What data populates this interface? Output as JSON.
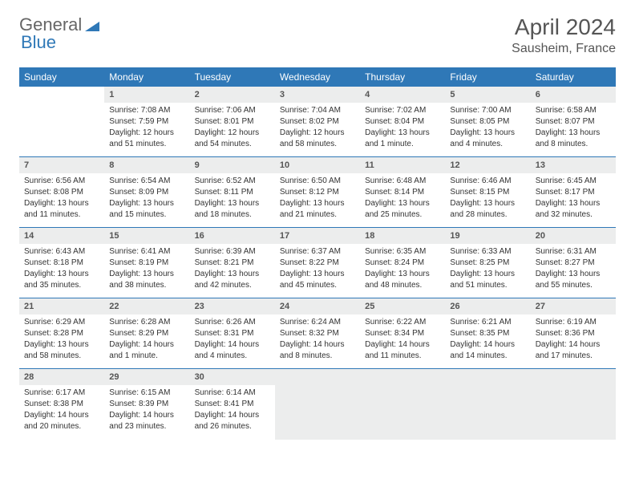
{
  "logo": {
    "part1": "General",
    "part2": "Blue"
  },
  "title": "April 2024",
  "location": "Sausheim, France",
  "colors": {
    "header_bg": "#2f78b7",
    "header_text": "#ffffff",
    "date_bar_bg": "#eceded",
    "border": "#2f78b7",
    "text": "#333333"
  },
  "weekdays": [
    "Sunday",
    "Monday",
    "Tuesday",
    "Wednesday",
    "Thursday",
    "Friday",
    "Saturday"
  ],
  "leading_blanks": 1,
  "days": [
    {
      "n": "1",
      "sunrise": "Sunrise: 7:08 AM",
      "sunset": "Sunset: 7:59 PM",
      "day1": "Daylight: 12 hours",
      "day2": "and 51 minutes."
    },
    {
      "n": "2",
      "sunrise": "Sunrise: 7:06 AM",
      "sunset": "Sunset: 8:01 PM",
      "day1": "Daylight: 12 hours",
      "day2": "and 54 minutes."
    },
    {
      "n": "3",
      "sunrise": "Sunrise: 7:04 AM",
      "sunset": "Sunset: 8:02 PM",
      "day1": "Daylight: 12 hours",
      "day2": "and 58 minutes."
    },
    {
      "n": "4",
      "sunrise": "Sunrise: 7:02 AM",
      "sunset": "Sunset: 8:04 PM",
      "day1": "Daylight: 13 hours",
      "day2": "and 1 minute."
    },
    {
      "n": "5",
      "sunrise": "Sunrise: 7:00 AM",
      "sunset": "Sunset: 8:05 PM",
      "day1": "Daylight: 13 hours",
      "day2": "and 4 minutes."
    },
    {
      "n": "6",
      "sunrise": "Sunrise: 6:58 AM",
      "sunset": "Sunset: 8:07 PM",
      "day1": "Daylight: 13 hours",
      "day2": "and 8 minutes."
    },
    {
      "n": "7",
      "sunrise": "Sunrise: 6:56 AM",
      "sunset": "Sunset: 8:08 PM",
      "day1": "Daylight: 13 hours",
      "day2": "and 11 minutes."
    },
    {
      "n": "8",
      "sunrise": "Sunrise: 6:54 AM",
      "sunset": "Sunset: 8:09 PM",
      "day1": "Daylight: 13 hours",
      "day2": "and 15 minutes."
    },
    {
      "n": "9",
      "sunrise": "Sunrise: 6:52 AM",
      "sunset": "Sunset: 8:11 PM",
      "day1": "Daylight: 13 hours",
      "day2": "and 18 minutes."
    },
    {
      "n": "10",
      "sunrise": "Sunrise: 6:50 AM",
      "sunset": "Sunset: 8:12 PM",
      "day1": "Daylight: 13 hours",
      "day2": "and 21 minutes."
    },
    {
      "n": "11",
      "sunrise": "Sunrise: 6:48 AM",
      "sunset": "Sunset: 8:14 PM",
      "day1": "Daylight: 13 hours",
      "day2": "and 25 minutes."
    },
    {
      "n": "12",
      "sunrise": "Sunrise: 6:46 AM",
      "sunset": "Sunset: 8:15 PM",
      "day1": "Daylight: 13 hours",
      "day2": "and 28 minutes."
    },
    {
      "n": "13",
      "sunrise": "Sunrise: 6:45 AM",
      "sunset": "Sunset: 8:17 PM",
      "day1": "Daylight: 13 hours",
      "day2": "and 32 minutes."
    },
    {
      "n": "14",
      "sunrise": "Sunrise: 6:43 AM",
      "sunset": "Sunset: 8:18 PM",
      "day1": "Daylight: 13 hours",
      "day2": "and 35 minutes."
    },
    {
      "n": "15",
      "sunrise": "Sunrise: 6:41 AM",
      "sunset": "Sunset: 8:19 PM",
      "day1": "Daylight: 13 hours",
      "day2": "and 38 minutes."
    },
    {
      "n": "16",
      "sunrise": "Sunrise: 6:39 AM",
      "sunset": "Sunset: 8:21 PM",
      "day1": "Daylight: 13 hours",
      "day2": "and 42 minutes."
    },
    {
      "n": "17",
      "sunrise": "Sunrise: 6:37 AM",
      "sunset": "Sunset: 8:22 PM",
      "day1": "Daylight: 13 hours",
      "day2": "and 45 minutes."
    },
    {
      "n": "18",
      "sunrise": "Sunrise: 6:35 AM",
      "sunset": "Sunset: 8:24 PM",
      "day1": "Daylight: 13 hours",
      "day2": "and 48 minutes."
    },
    {
      "n": "19",
      "sunrise": "Sunrise: 6:33 AM",
      "sunset": "Sunset: 8:25 PM",
      "day1": "Daylight: 13 hours",
      "day2": "and 51 minutes."
    },
    {
      "n": "20",
      "sunrise": "Sunrise: 6:31 AM",
      "sunset": "Sunset: 8:27 PM",
      "day1": "Daylight: 13 hours",
      "day2": "and 55 minutes."
    },
    {
      "n": "21",
      "sunrise": "Sunrise: 6:29 AM",
      "sunset": "Sunset: 8:28 PM",
      "day1": "Daylight: 13 hours",
      "day2": "and 58 minutes."
    },
    {
      "n": "22",
      "sunrise": "Sunrise: 6:28 AM",
      "sunset": "Sunset: 8:29 PM",
      "day1": "Daylight: 14 hours",
      "day2": "and 1 minute."
    },
    {
      "n": "23",
      "sunrise": "Sunrise: 6:26 AM",
      "sunset": "Sunset: 8:31 PM",
      "day1": "Daylight: 14 hours",
      "day2": "and 4 minutes."
    },
    {
      "n": "24",
      "sunrise": "Sunrise: 6:24 AM",
      "sunset": "Sunset: 8:32 PM",
      "day1": "Daylight: 14 hours",
      "day2": "and 8 minutes."
    },
    {
      "n": "25",
      "sunrise": "Sunrise: 6:22 AM",
      "sunset": "Sunset: 8:34 PM",
      "day1": "Daylight: 14 hours",
      "day2": "and 11 minutes."
    },
    {
      "n": "26",
      "sunrise": "Sunrise: 6:21 AM",
      "sunset": "Sunset: 8:35 PM",
      "day1": "Daylight: 14 hours",
      "day2": "and 14 minutes."
    },
    {
      "n": "27",
      "sunrise": "Sunrise: 6:19 AM",
      "sunset": "Sunset: 8:36 PM",
      "day1": "Daylight: 14 hours",
      "day2": "and 17 minutes."
    },
    {
      "n": "28",
      "sunrise": "Sunrise: 6:17 AM",
      "sunset": "Sunset: 8:38 PM",
      "day1": "Daylight: 14 hours",
      "day2": "and 20 minutes."
    },
    {
      "n": "29",
      "sunrise": "Sunrise: 6:15 AM",
      "sunset": "Sunset: 8:39 PM",
      "day1": "Daylight: 14 hours",
      "day2": "and 23 minutes."
    },
    {
      "n": "30",
      "sunrise": "Sunrise: 6:14 AM",
      "sunset": "Sunset: 8:41 PM",
      "day1": "Daylight: 14 hours",
      "day2": "and 26 minutes."
    }
  ],
  "trailing_blanks": 4
}
